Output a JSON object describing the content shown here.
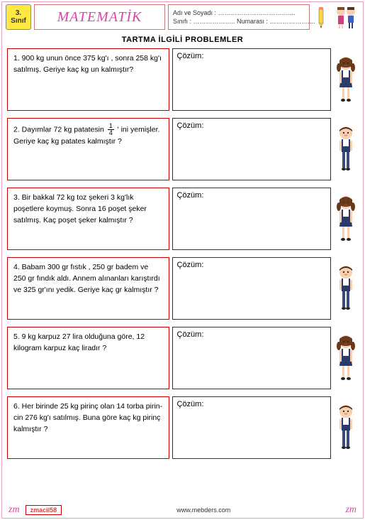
{
  "grade": {
    "num": "3.",
    "label": "Sınıf"
  },
  "title": "MATEMATİK",
  "name_fields": {
    "line1_label": "Adı ve Soyadı :",
    "line1_dots": " ……………………………....",
    "line2_label_a": "Sınıfı :",
    "line2_dots_a": " ………………..",
    "line2_label_b": " Numarası :",
    "line2_dots_b": " ………………...."
  },
  "section_title": "TARTMA  İLGİLİ   PROBLEMLER",
  "solution_label": "Çözüm:",
  "problems": [
    {
      "text": "1. 900 kg unun önce 375 kg'ı , sonra 258 kg'ı satılmış. Geriye kaç kg un kalmıştır?",
      "char": "girl"
    },
    {
      "text_pre": "2. Dayımlar 72 kg patatesin ",
      "frac_n": "1",
      "frac_d": "4",
      "text_post": " ' ini yemişler. Geriye kaç kg patates kalmıştır ?",
      "char": "boy"
    },
    {
      "text": "3. Bir bakkal 72 kg toz şekeri 3 kg'lık poşetlere koymuş. Sonra 16 poşet şeker satılmış. Kaç poşet şeker kalmıştır ?",
      "char": "girl"
    },
    {
      "text": "4. Babam 300 gr fıstık , 250 gr badem ve 250 gr fındık aldı. Annem alınanları karıştırdı ve 325 gr'ını yedik. Geriye kaç gr kalmıştır ?",
      "char": "boy"
    },
    {
      "text": "5. 9 kg karpuz 27 lira olduğuna göre, 12 kilogram karpuz kaç liradır  ?",
      "char": "girl"
    },
    {
      "text": "6. Her birinde 25 kg pirinç olan 14 torba pirin-cin 276 kg'ı satılmış. Buna göre kaç kg pirinç kalmıştır ?",
      "char": "boy"
    }
  ],
  "footer": {
    "zm": "zm",
    "tag": "zmacil58",
    "url": "www.mebders.com"
  },
  "colors": {
    "pink": "#d946a8",
    "red_border": "#c00",
    "dark_border": "#333",
    "yellow": "#ffe840",
    "page_border": "#e5a0c0"
  }
}
